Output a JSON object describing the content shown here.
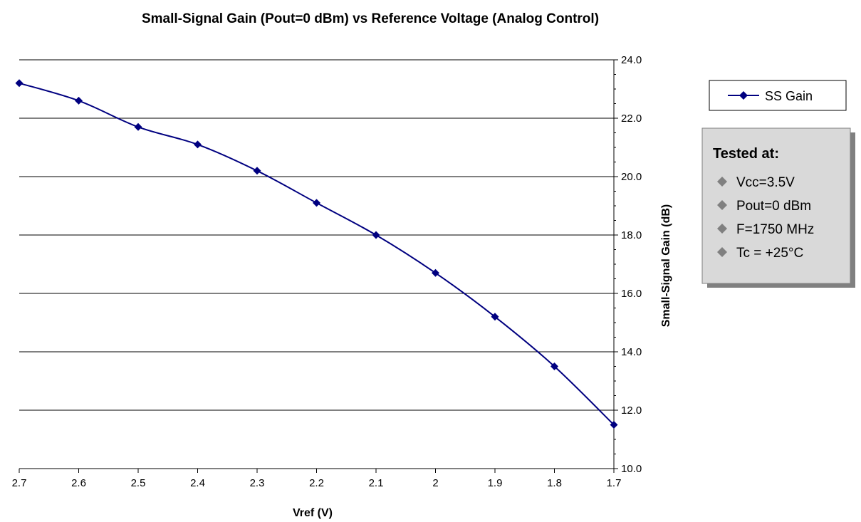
{
  "chart_data": {
    "type": "line",
    "title": "Small-Signal Gain (Pout=0 dBm) vs Reference Voltage (Analog Control)",
    "xlabel": "Vref (V)",
    "ylabel": "Small-Signal Gain (dB)",
    "x_reversed": true,
    "xlim": [
      2.7,
      1.7
    ],
    "ylim": [
      10.0,
      24.0
    ],
    "x_ticks": [
      2.7,
      2.6,
      2.5,
      2.4,
      2.3,
      2.2,
      2.1,
      2,
      1.9,
      1.8,
      1.7
    ],
    "x_tick_labels": [
      "2.7",
      "2.6",
      "2.5",
      "2.4",
      "2.3",
      "2.2",
      "2.1",
      "2",
      "1.9",
      "1.8",
      "1.7"
    ],
    "y_ticks": [
      10,
      12,
      14,
      16,
      18,
      20,
      22,
      24
    ],
    "y_tick_labels": [
      "10.0",
      "12.0",
      "14.0",
      "16.0",
      "18.0",
      "20.0",
      "22.0",
      "24.0"
    ],
    "y_axis_side": "right",
    "grid": "horizontal",
    "legend_position": "right",
    "series": [
      {
        "name": "SS Gain",
        "color": "#000080",
        "marker": "diamond",
        "x": [
          2.7,
          2.6,
          2.5,
          2.4,
          2.3,
          2.2,
          2.1,
          2.0,
          1.9,
          1.8,
          1.7
        ],
        "y": [
          23.2,
          22.6,
          21.7,
          21.1,
          20.2,
          19.1,
          18.0,
          16.7,
          15.2,
          13.5,
          11.5
        ]
      }
    ]
  },
  "notes": {
    "title": "Tested at:",
    "bullet_color": "#808080",
    "items": [
      "Vcc=3.5V",
      "Pout=0 dBm",
      "F=1750 MHz",
      "Tc = +25°C"
    ]
  }
}
